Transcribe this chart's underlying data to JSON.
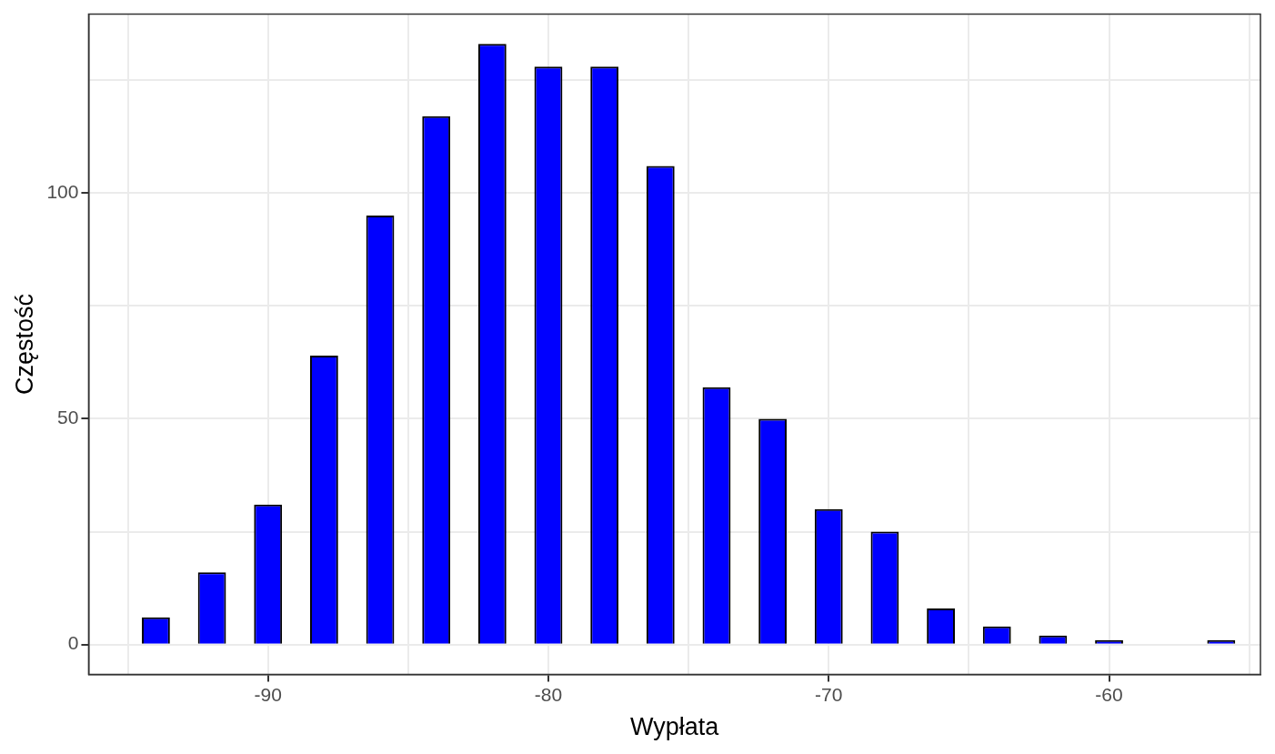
{
  "chart_data": {
    "type": "bar",
    "xlabel": "Wypłata",
    "ylabel": "Częstość",
    "x": [
      -94,
      -92,
      -90,
      -88,
      -86,
      -84,
      -82,
      -80,
      -78,
      -76,
      -74,
      -72,
      -70,
      -68,
      -66,
      -64,
      -62,
      -60,
      -58,
      -56
    ],
    "values": [
      6,
      16,
      31,
      64,
      95,
      117,
      133,
      128,
      128,
      106,
      57,
      50,
      30,
      25,
      8,
      4,
      2,
      1,
      0,
      1
    ],
    "color": "#0000ff",
    "xlim": [
      -96.4,
      -54.6
    ],
    "xticks": [
      {
        "value": -95,
        "label": null
      },
      -90,
      {
        "value": -85,
        "label": null
      },
      -80,
      {
        "value": -75,
        "label": null
      },
      -70,
      {
        "value": -65,
        "label": null
      },
      -60,
      {
        "value": -55,
        "label": null
      }
    ],
    "ylim": [
      -6.6,
      139.6
    ],
    "yticks": [
      0,
      {
        "value": 25,
        "label": null
      },
      50,
      {
        "value": 75,
        "label": null
      },
      100,
      {
        "value": 125,
        "label": null
      }
    ],
    "grid": true,
    "legend": false
  }
}
